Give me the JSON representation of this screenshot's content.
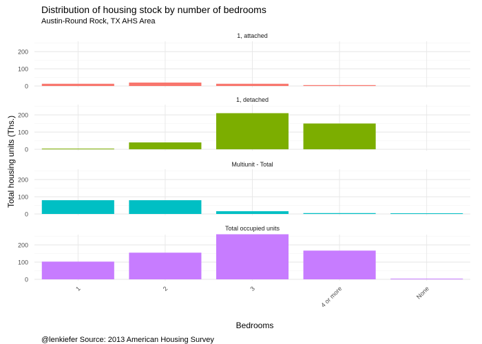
{
  "title": "Distribution of housing stock by number of bedrooms",
  "subtitle": "Austin-Round Rock, TX AHS Area",
  "caption": "@lenkiefer Source: 2013 American Housing Survey",
  "chart_data": {
    "type": "bar",
    "xlabel": "Bedrooms",
    "ylabel": "Total housing units (Ths.)",
    "categories": [
      "1",
      "2",
      "3",
      "4 or more",
      "None"
    ],
    "ylim": [
      0,
      280
    ],
    "yticks": [
      0,
      100,
      200
    ],
    "grid": true,
    "legend": "none",
    "series": [
      {
        "name": "1, attached",
        "color": "#F8766D",
        "values": [
          13,
          20,
          13,
          5,
          0
        ]
      },
      {
        "name": "1, detached",
        "color": "#7CAE00",
        "values": [
          4,
          40,
          210,
          150,
          0
        ]
      },
      {
        "name": "Multiunit - Total",
        "color": "#00BFC4",
        "values": [
          80,
          80,
          16,
          5,
          4
        ]
      },
      {
        "name": "Total occupied units",
        "color": "#C77CFF",
        "values": [
          103,
          155,
          262,
          167,
          4
        ]
      }
    ]
  }
}
